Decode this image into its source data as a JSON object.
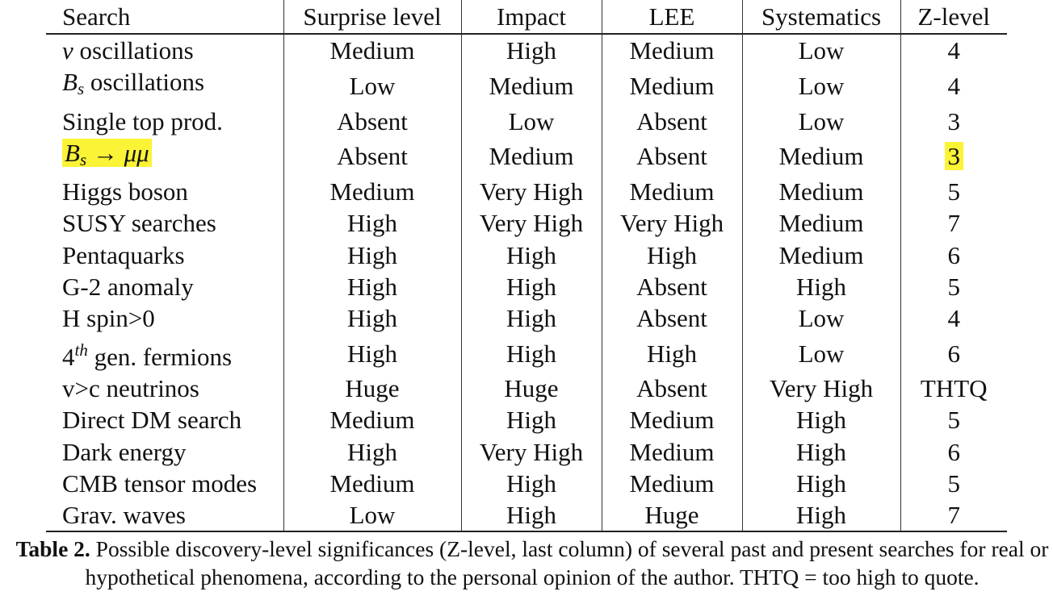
{
  "table": {
    "columns": [
      "Search",
      "Surprise level",
      "Impact",
      "LEE",
      "Systematics",
      "Z-level"
    ],
    "rows": [
      {
        "search": "ν oscillations",
        "search_parts": {
          "sym": "ν",
          "rest": " oscillations"
        },
        "surprise": "Medium",
        "impact": "High",
        "lee": "Medium",
        "systematics": "Low",
        "z": "4"
      },
      {
        "search": "B_s oscillations",
        "search_parts": {
          "base": "B",
          "sub": "s",
          "rest": " oscillations"
        },
        "surprise": "Low",
        "impact": "Medium",
        "lee": "Medium",
        "systematics": "Low",
        "z": "4"
      },
      {
        "search": "Single top prod.",
        "surprise": "Absent",
        "impact": "Low",
        "lee": "Absent",
        "systematics": "Low",
        "z": "3"
      },
      {
        "search": "B_s → μμ",
        "search_parts": {
          "base": "B",
          "sub": "s",
          "rest": " → μμ"
        },
        "highlighted": true,
        "surprise": "Absent",
        "impact": "Medium",
        "lee": "Absent",
        "systematics": "Medium",
        "z": "3"
      },
      {
        "search": "Higgs boson",
        "surprise": "Medium",
        "impact": "Very High",
        "lee": "Medium",
        "systematics": "Medium",
        "z": "5"
      },
      {
        "search": "SUSY searches",
        "surprise": "High",
        "impact": "Very High",
        "lee": "Very High",
        "systematics": "Medium",
        "z": "7"
      },
      {
        "search": "Pentaquarks",
        "surprise": "High",
        "impact": "High",
        "lee": "High",
        "systematics": "Medium",
        "z": "6"
      },
      {
        "search": "G-2 anomaly",
        "surprise": "High",
        "impact": "High",
        "lee": "Absent",
        "systematics": "High",
        "z": "5"
      },
      {
        "search": "H spin>0",
        "surprise": "High",
        "impact": "High",
        "lee": "Absent",
        "systematics": "Low",
        "z": "4"
      },
      {
        "search": "4^th gen. fermions",
        "search_parts": {
          "base": "4",
          "sup": "th",
          "rest": " gen. fermions"
        },
        "surprise": "High",
        "impact": "High",
        "lee": "High",
        "systematics": "Low",
        "z": "6"
      },
      {
        "search": "v>c neutrinos",
        "surprise": "Huge",
        "impact": "Huge",
        "lee": "Absent",
        "systematics": "Very High",
        "z": "THTQ"
      },
      {
        "search": "Direct DM search",
        "surprise": "Medium",
        "impact": "High",
        "lee": "Medium",
        "systematics": "High",
        "z": "5"
      },
      {
        "search": "Dark energy",
        "surprise": "High",
        "impact": "Very High",
        "lee": "Medium",
        "systematics": "High",
        "z": "6"
      },
      {
        "search": "CMB tensor modes",
        "surprise": "Medium",
        "impact": "High",
        "lee": "Medium",
        "systematics": "High",
        "z": "5"
      },
      {
        "search": "Grav. waves",
        "surprise": "Low",
        "impact": "High",
        "lee": "Huge",
        "systematics": "High",
        "z": "7"
      }
    ]
  },
  "caption": {
    "label": "Table 2.",
    "text": " Possible discovery-level significances (Z-level, last column) of several past and present searches for real or hypothetical phenomena, according to the personal opinion of the author. THTQ = too high to quote."
  },
  "colors": {
    "highlight": "#fbf335",
    "text": "#111111"
  }
}
